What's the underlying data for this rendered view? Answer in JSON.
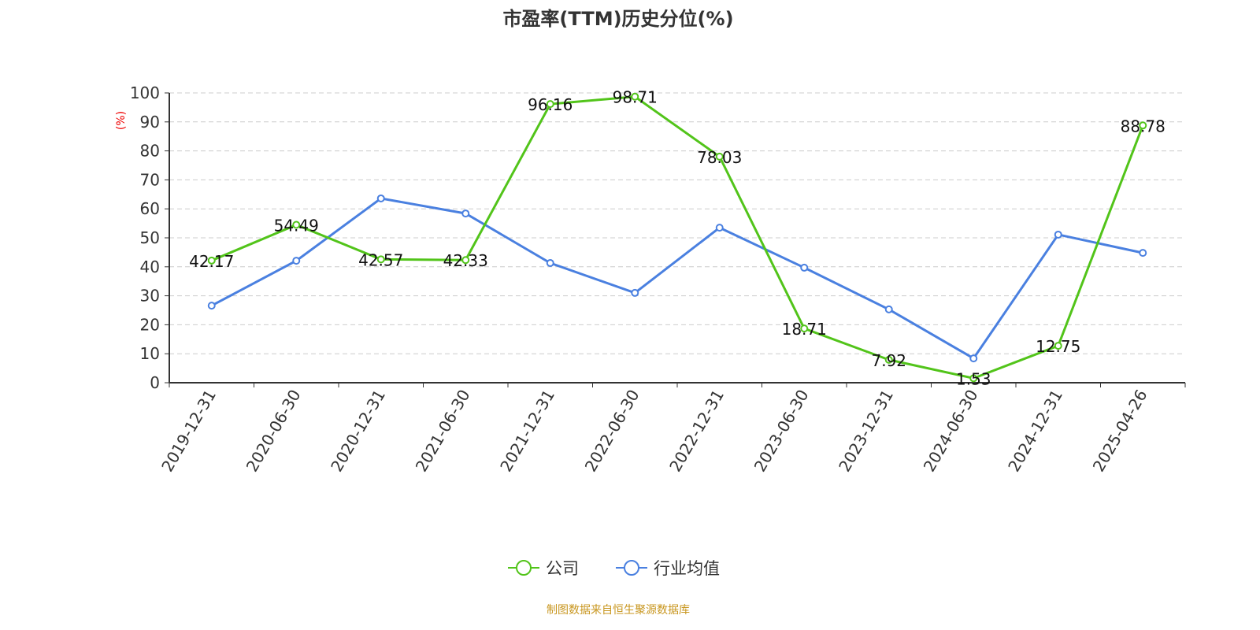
{
  "chart_data": {
    "type": "line",
    "title": "市盈率(TTM)历史分位(%)",
    "ylabel": "(%)",
    "ylim": [
      0,
      100
    ],
    "yticks": [
      0,
      10,
      20,
      30,
      40,
      50,
      60,
      70,
      80,
      90,
      100
    ],
    "grid": true,
    "legend_position": "bottom",
    "categories": [
      "2019-12-31",
      "2020-06-30",
      "2020-12-31",
      "2021-06-30",
      "2021-12-31",
      "2022-06-30",
      "2022-12-31",
      "2023-06-30",
      "2023-12-31",
      "2024-06-30",
      "2024-12-31",
      "2025-04-26"
    ],
    "series": [
      {
        "name": "公司",
        "color": "#52c41a",
        "labels": true,
        "values": [
          42.17,
          54.49,
          42.57,
          42.33,
          96.16,
          98.71,
          78.03,
          18.71,
          7.92,
          1.53,
          12.75,
          88.78
        ]
      },
      {
        "name": "行业均值",
        "color": "#4a80e0",
        "labels": false,
        "values": [
          26.6,
          42.1,
          63.6,
          58.4,
          41.3,
          31.0,
          53.5,
          39.7,
          25.3,
          8.4,
          51.1,
          44.8
        ]
      }
    ]
  },
  "footer": {
    "source": "制图数据来自恒生聚源数据库"
  }
}
